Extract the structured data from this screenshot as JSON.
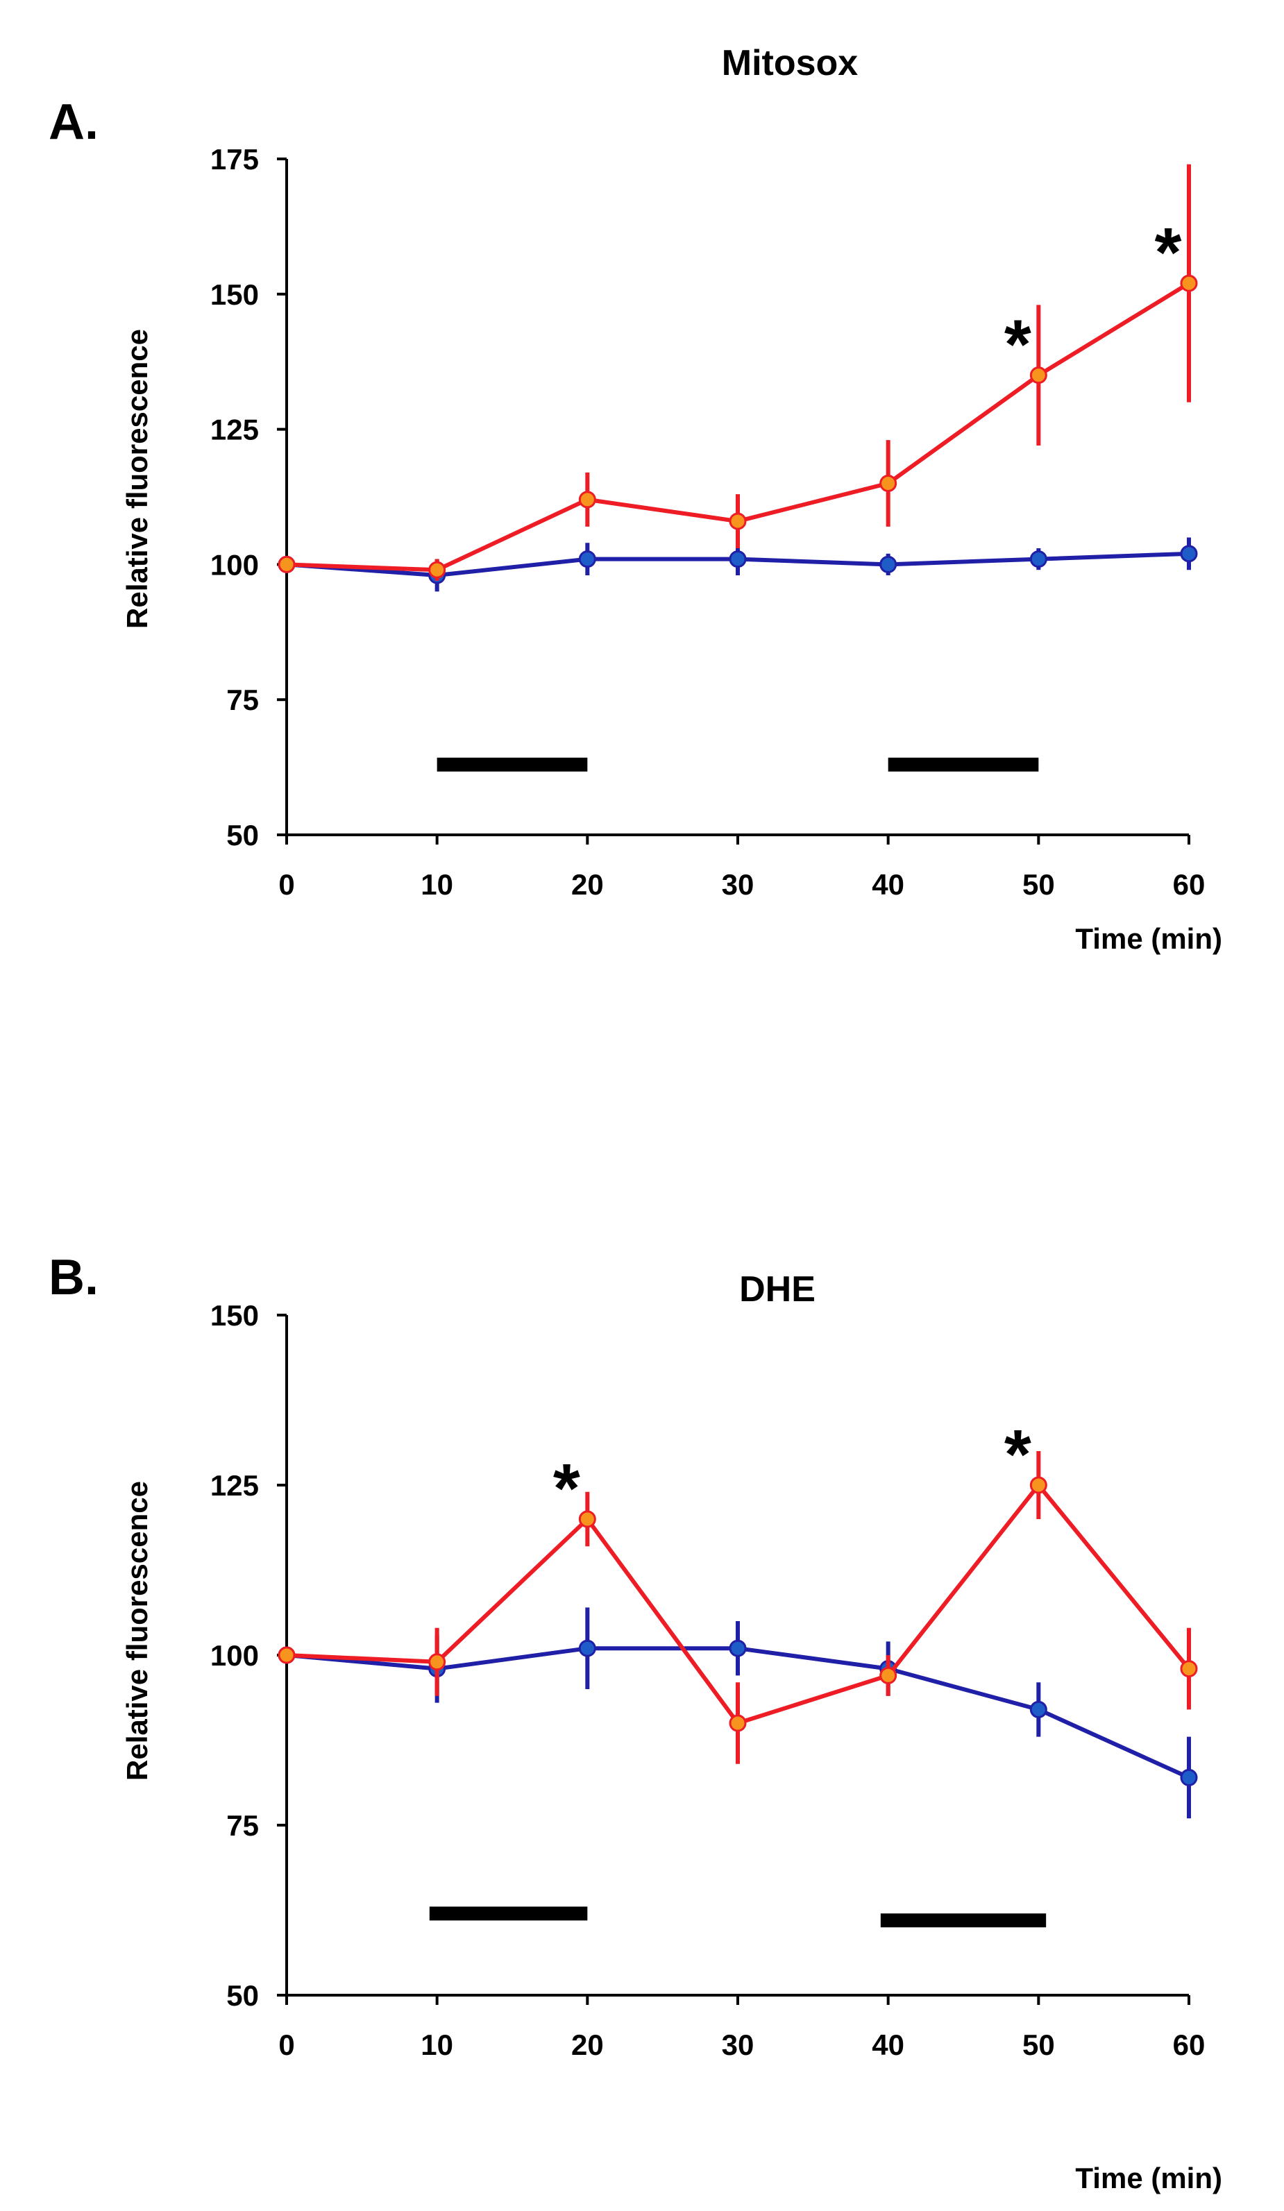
{
  "chart_data": [
    {
      "type": "line",
      "panel_label": "A.",
      "title": "Mitosox",
      "xlabel": "Time (min)",
      "ylabel": "Relative fluorescence",
      "xlim": [
        0,
        60
      ],
      "ylim": [
        50,
        175
      ],
      "xticks": [
        0,
        10,
        20,
        30,
        40,
        50,
        60
      ],
      "yticks": [
        50,
        75,
        100,
        125,
        150,
        175
      ],
      "x": [
        0,
        10,
        20,
        30,
        40,
        50,
        60
      ],
      "series": [
        {
          "name": "red",
          "color": "#ee1c24",
          "marker": "#f7941d",
          "values": [
            100,
            99,
            112,
            108,
            115,
            135,
            152
          ],
          "errors": [
            0,
            2,
            5,
            5,
            8,
            13,
            22
          ]
        },
        {
          "name": "blue",
          "color": "#1f1fa8",
          "marker": "#1e5cc8",
          "values": [
            100,
            98,
            101,
            101,
            100,
            101,
            102
          ],
          "errors": [
            0,
            3,
            3,
            3,
            2,
            2,
            3
          ]
        }
      ],
      "bars": [
        {
          "x0": 10,
          "x1": 20,
          "y": 63
        },
        {
          "x0": 40,
          "x1": 50,
          "y": 63
        }
      ],
      "significance": [
        {
          "x": 50,
          "y": 135,
          "label": "*"
        },
        {
          "x": 60,
          "y": 152,
          "label": "*"
        }
      ]
    },
    {
      "type": "line",
      "panel_label": "B.",
      "title": "DHE",
      "xlabel": "Time (min)",
      "ylabel": "Relative fluorescence",
      "xlim": [
        0,
        60
      ],
      "ylim": [
        50,
        150
      ],
      "xticks": [
        0,
        10,
        20,
        30,
        40,
        50,
        60
      ],
      "yticks": [
        50,
        75,
        100,
        125,
        150
      ],
      "x": [
        0,
        10,
        20,
        30,
        40,
        50,
        60
      ],
      "series": [
        {
          "name": "red",
          "color": "#ee1c24",
          "marker": "#f7941d",
          "values": [
            100,
            99,
            120,
            90,
            97,
            125,
            98
          ],
          "errors": [
            0,
            5,
            4,
            6,
            3,
            5,
            6
          ]
        },
        {
          "name": "blue",
          "color": "#1f1fa8",
          "marker": "#1e5cc8",
          "values": [
            100,
            98,
            101,
            101,
            98,
            92,
            82
          ],
          "errors": [
            0,
            5,
            6,
            4,
            4,
            4,
            6
          ]
        }
      ],
      "bars": [
        {
          "x0": 9.5,
          "x1": 20,
          "y": 62
        },
        {
          "x0": 39.5,
          "x1": 50.5,
          "y": 61
        }
      ],
      "significance": [
        {
          "x": 20,
          "y": 120,
          "label": "*"
        },
        {
          "x": 50,
          "y": 125,
          "label": "*"
        }
      ]
    }
  ]
}
